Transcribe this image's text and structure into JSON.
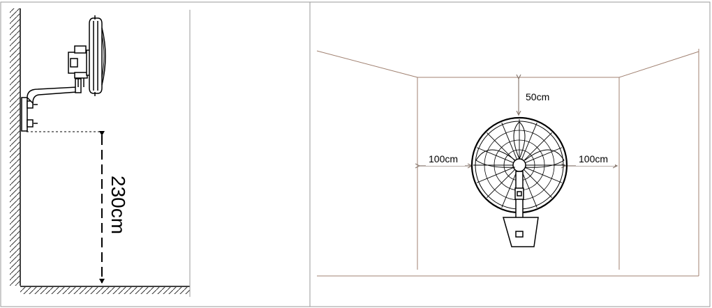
{
  "side_view": {
    "height_label": "230cm"
  },
  "front_view": {
    "top_clearance_label": "50cm",
    "left_clearance_label": "100cm",
    "right_clearance_label": "100cm"
  }
}
